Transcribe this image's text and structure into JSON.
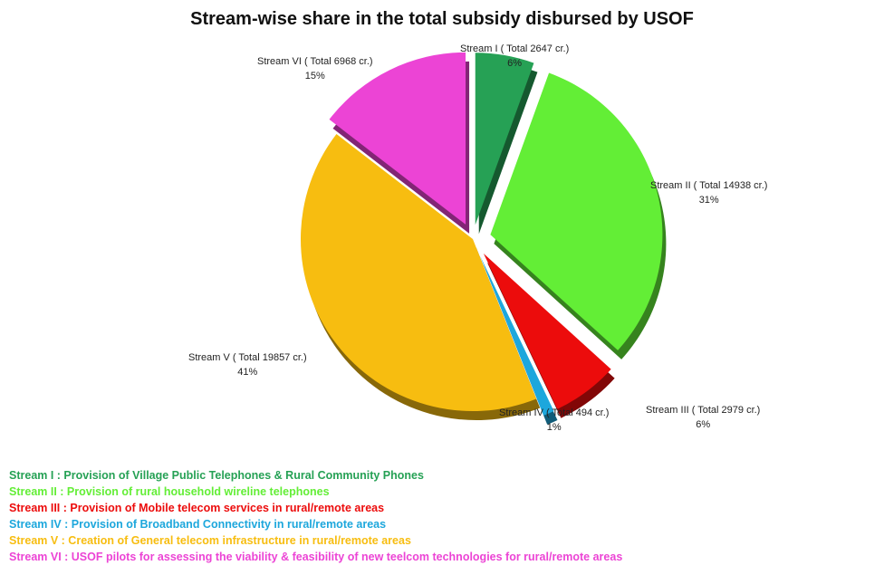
{
  "chart_data": {
    "type": "pie",
    "title": "Stream-wise share in the total subsidy disbursed by USOF",
    "slices": [
      {
        "name": "Stream I",
        "label": "Stream I ( Total 2647 cr.)",
        "value": 2647,
        "percent": "6%",
        "color": "#26a155"
      },
      {
        "name": "Stream II",
        "label": "Stream II ( Total 14938 cr.)",
        "value": 14938,
        "percent": "31%",
        "color": "#63ee36"
      },
      {
        "name": "Stream III",
        "label": "Stream III ( Total 2979 cr.)",
        "value": 2979,
        "percent": "6%",
        "color": "#ec0c0c"
      },
      {
        "name": "Stream IV",
        "label": "Stream IV ( Total 494 cr.)",
        "value": 494,
        "percent": "1%",
        "color": "#1da7dc"
      },
      {
        "name": "Stream V",
        "label": "Stream V ( Total 19857 cr.)",
        "value": 19857,
        "percent": "41%",
        "color": "#f7bd10"
      },
      {
        "name": "Stream VI",
        "label": "Stream VI ( Total 6968 cr.)",
        "value": 6968,
        "percent": "15%",
        "color": "#ec44d5"
      }
    ]
  },
  "legend": [
    {
      "text": "Stream I : Provision of Village Public  Telephones & Rural Community Phones",
      "color": "#26a155"
    },
    {
      "text": "Stream II : Provision of rural  household wireline telephones",
      "color": "#63ee36"
    },
    {
      "text": "Stream III : Provision of Mobile telecom services in rural/remote areas",
      "color": "#ec0c0c"
    },
    {
      "text": "Stream IV : Provision of Broadband  Connectivity    in rural/remote areas",
      "color": "#1da7dc"
    },
    {
      "text": "Stream V :  Creation of General telecom infrastructure in rural/remote areas",
      "color": "#f7bd10"
    },
    {
      "text": "Stream VI : USOF pilots for assessing the viability & feasibility  of  new  teelcom technologies  for rural/remote areas",
      "color": "#ec44d5"
    }
  ]
}
